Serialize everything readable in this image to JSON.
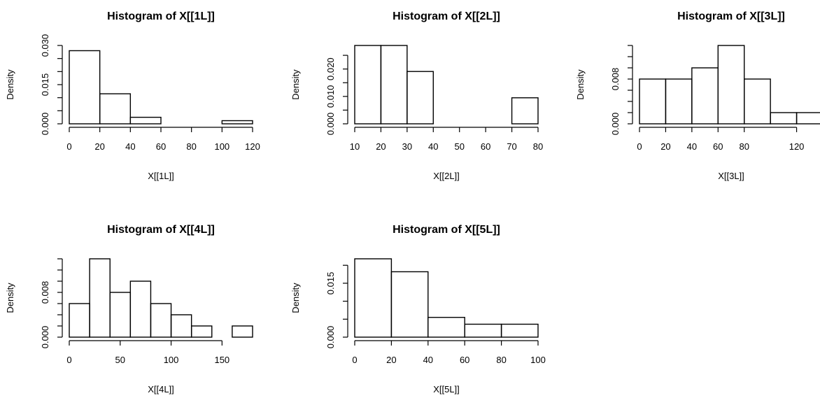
{
  "chart_data": [
    {
      "type": "bar",
      "subtype": "histogram",
      "title": "Histogram of X[[1L]]",
      "xlabel": "X[[1L]]",
      "ylabel": "Density",
      "breaks": [
        0,
        20,
        40,
        60,
        80,
        100,
        120
      ],
      "values": [
        0.028,
        0.0115,
        0.0025,
        0.0,
        0.0,
        0.0012
      ],
      "xlim": [
        0,
        120
      ],
      "ylim": [
        0,
        0.03
      ],
      "xticks": [
        0,
        20,
        40,
        60,
        80,
        100,
        120
      ],
      "yticks": [
        0.0,
        0.005,
        0.01,
        0.015,
        0.02,
        0.025,
        0.03
      ],
      "ytick_labels": [
        "0.000",
        "",
        "",
        "0.015",
        "",
        "",
        "0.030"
      ],
      "grid": false
    },
    {
      "type": "bar",
      "subtype": "histogram",
      "title": "Histogram of X[[2L]]",
      "xlabel": "X[[2L]]",
      "ylabel": "Density",
      "breaks": [
        10,
        20,
        30,
        40,
        50,
        60,
        70,
        80
      ],
      "values": [
        0.0286,
        0.0286,
        0.0191,
        0.0,
        0.0,
        0.0,
        0.0095
      ],
      "xlim": [
        10,
        80
      ],
      "ylim": [
        0,
        0.0286
      ],
      "xticks": [
        10,
        20,
        30,
        40,
        50,
        60,
        70,
        80
      ],
      "yticks": [
        0.0,
        0.005,
        0.01,
        0.015,
        0.02,
        0.025
      ],
      "ytick_labels": [
        "0.000",
        "",
        "0.010",
        "",
        "0.020",
        ""
      ],
      "grid": false
    },
    {
      "type": "bar",
      "subtype": "histogram",
      "title": "Histogram of X[[3L]]",
      "xlabel": "X[[3L]]",
      "ylabel": "Density",
      "breaks": [
        0,
        20,
        40,
        60,
        80,
        100,
        120,
        140
      ],
      "values": [
        0.008,
        0.008,
        0.01,
        0.014,
        0.008,
        0.002,
        0.002
      ],
      "xlim": [
        0,
        140
      ],
      "ylim": [
        0,
        0.014
      ],
      "xticks": [
        0,
        20,
        40,
        60,
        80,
        120
      ],
      "yticks": [
        0.0,
        0.002,
        0.004,
        0.006,
        0.008,
        0.01,
        0.012,
        0.014
      ],
      "ytick_labels": [
        "0.000",
        "",
        "",
        "",
        "0.008",
        "",
        "",
        ""
      ],
      "grid": false
    },
    {
      "type": "bar",
      "subtype": "histogram",
      "title": "Histogram of X[[4L]]",
      "xlabel": "X[[4L]]",
      "ylabel": "Density",
      "breaks": [
        0,
        20,
        40,
        60,
        80,
        100,
        120,
        140,
        160,
        180
      ],
      "values": [
        0.006,
        0.014,
        0.008,
        0.01,
        0.006,
        0.004,
        0.002,
        0.0,
        0.002
      ],
      "xlim": [
        0,
        180
      ],
      "ylim": [
        0,
        0.014
      ],
      "xticks": [
        0,
        50,
        100,
        150
      ],
      "yticks": [
        0.0,
        0.002,
        0.004,
        0.006,
        0.008,
        0.01,
        0.012,
        0.014
      ],
      "ytick_labels": [
        "0.000",
        "",
        "",
        "",
        "0.008",
        "",
        "",
        ""
      ],
      "grid": false
    },
    {
      "type": "bar",
      "subtype": "histogram",
      "title": "Histogram of X[[5L]]",
      "xlabel": "X[[5L]]",
      "ylabel": "Density",
      "breaks": [
        0,
        20,
        40,
        60,
        80,
        100
      ],
      "values": [
        0.0218,
        0.0182,
        0.0055,
        0.0036,
        0.0036
      ],
      "xlim": [
        0,
        100
      ],
      "ylim": [
        0,
        0.0218
      ],
      "xticks": [
        0,
        20,
        40,
        60,
        80,
        100
      ],
      "yticks": [
        0.0,
        0.005,
        0.01,
        0.015,
        0.02
      ],
      "ytick_labels": [
        "0.000",
        "",
        "",
        "0.015",
        ""
      ],
      "grid": false
    }
  ]
}
